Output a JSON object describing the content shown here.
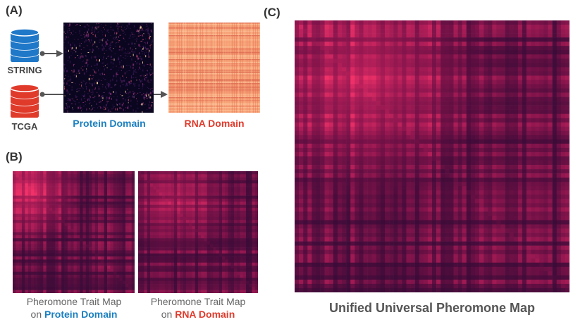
{
  "panels": {
    "a": "(A)",
    "b": "(B)",
    "c": "(C)"
  },
  "sources": {
    "string_label": "STRING",
    "tcga_label": "TCGA",
    "string_color": "#1f78c8",
    "tcga_color": "#e03a2b"
  },
  "domains": {
    "protein_label": "Protein Domain",
    "rna_label": "RNA Domain",
    "protein_color": "#1a7fc0",
    "rna_color": "#e03a2b"
  },
  "maps": {
    "protein_caption_line1": "Pheromone Trait Map",
    "protein_caption_line2_prefix": "on ",
    "protein_caption_line2_bold": "Protein Domain",
    "rna_caption_line1": "Pheromone Trait Map",
    "rna_caption_line2_prefix": "on ",
    "rna_caption_line2_bold": "RNA Domain",
    "unified_caption": "Unified Universal Pheromone Map"
  }
}
